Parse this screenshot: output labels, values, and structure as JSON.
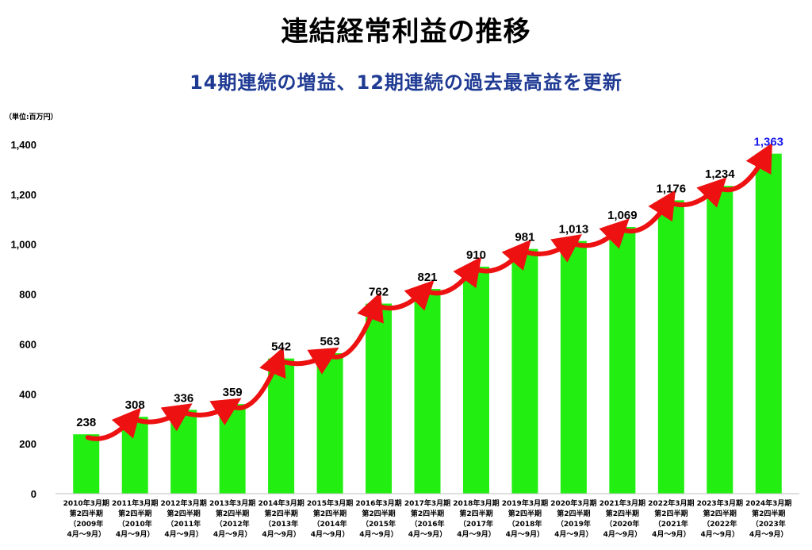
{
  "header": {
    "title": "連結経常利益の推移",
    "subtitle": "14期連続の増益、12期連続の過去最高益を更新",
    "unit": "（単位:百万円）"
  },
  "colors": {
    "bar": "#22ee11",
    "arrow": "#ee1111",
    "last_label": "#1a1aee",
    "subtitle": "#1f3a93"
  },
  "chart_data": {
    "type": "bar",
    "title": "連結経常利益の推移",
    "subtitle": "14期連続の増益、12期連続の過去最高益を更新",
    "ylabel": "（単位:百万円）",
    "ylim": [
      0,
      1400
    ],
    "yticks": [
      0,
      200,
      400,
      600,
      800,
      1000,
      1200,
      1400
    ],
    "ytick_labels": [
      "0",
      "200",
      "400",
      "600",
      "800",
      "1,000",
      "1,200",
      "1,400"
    ],
    "grid": false,
    "categories": [
      [
        "2010年3月期",
        "第2四半期",
        "（2009年",
        "4月～9月）"
      ],
      [
        "2011年3月期",
        "第2四半期",
        "（2010年",
        "4月～9月）"
      ],
      [
        "2012年3月期",
        "第2四半期",
        "（2011年",
        "4月～9月）"
      ],
      [
        "2013年3月期",
        "第2四半期",
        "（2012年",
        "4月～9月）"
      ],
      [
        "2014年3月期",
        "第2四半期",
        "（2013年",
        "4月～9月）"
      ],
      [
        "2015年3月期",
        "第2四半期",
        "（2014年",
        "4月～9月）"
      ],
      [
        "2016年3月期",
        "第2四半期",
        "（2015年",
        "4月～9月）"
      ],
      [
        "2017年3月期",
        "第2四半期",
        "（2016年",
        "4月～9月）"
      ],
      [
        "2018年3月期",
        "第2四半期",
        "（2017年",
        "4月～9月）"
      ],
      [
        "2019年3月期",
        "第2四半期",
        "（2018年",
        "4月～9月）"
      ],
      [
        "2020年3月期",
        "第2四半期",
        "（2019年",
        "4月～9月）"
      ],
      [
        "2021年3月期",
        "第2四半期",
        "（2020年",
        "4月～9月）"
      ],
      [
        "2022年3月期",
        "第2四半期",
        "（2021年",
        "4月～9月）"
      ],
      [
        "2023年3月期",
        "第2四半期",
        "（2022年",
        "4月～9月）"
      ],
      [
        "2024年3月期",
        "第2四半期",
        "（2023年",
        "4月～9月）"
      ]
    ],
    "values": [
      238,
      308,
      336,
      359,
      542,
      563,
      762,
      821,
      910,
      981,
      1013,
      1069,
      1176,
      1234,
      1363
    ],
    "value_labels": [
      "238",
      "308",
      "336",
      "359",
      "542",
      "563",
      "762",
      "821",
      "910",
      "981",
      "1,013",
      "1,069",
      "1,176",
      "1,234",
      "1,363"
    ]
  }
}
